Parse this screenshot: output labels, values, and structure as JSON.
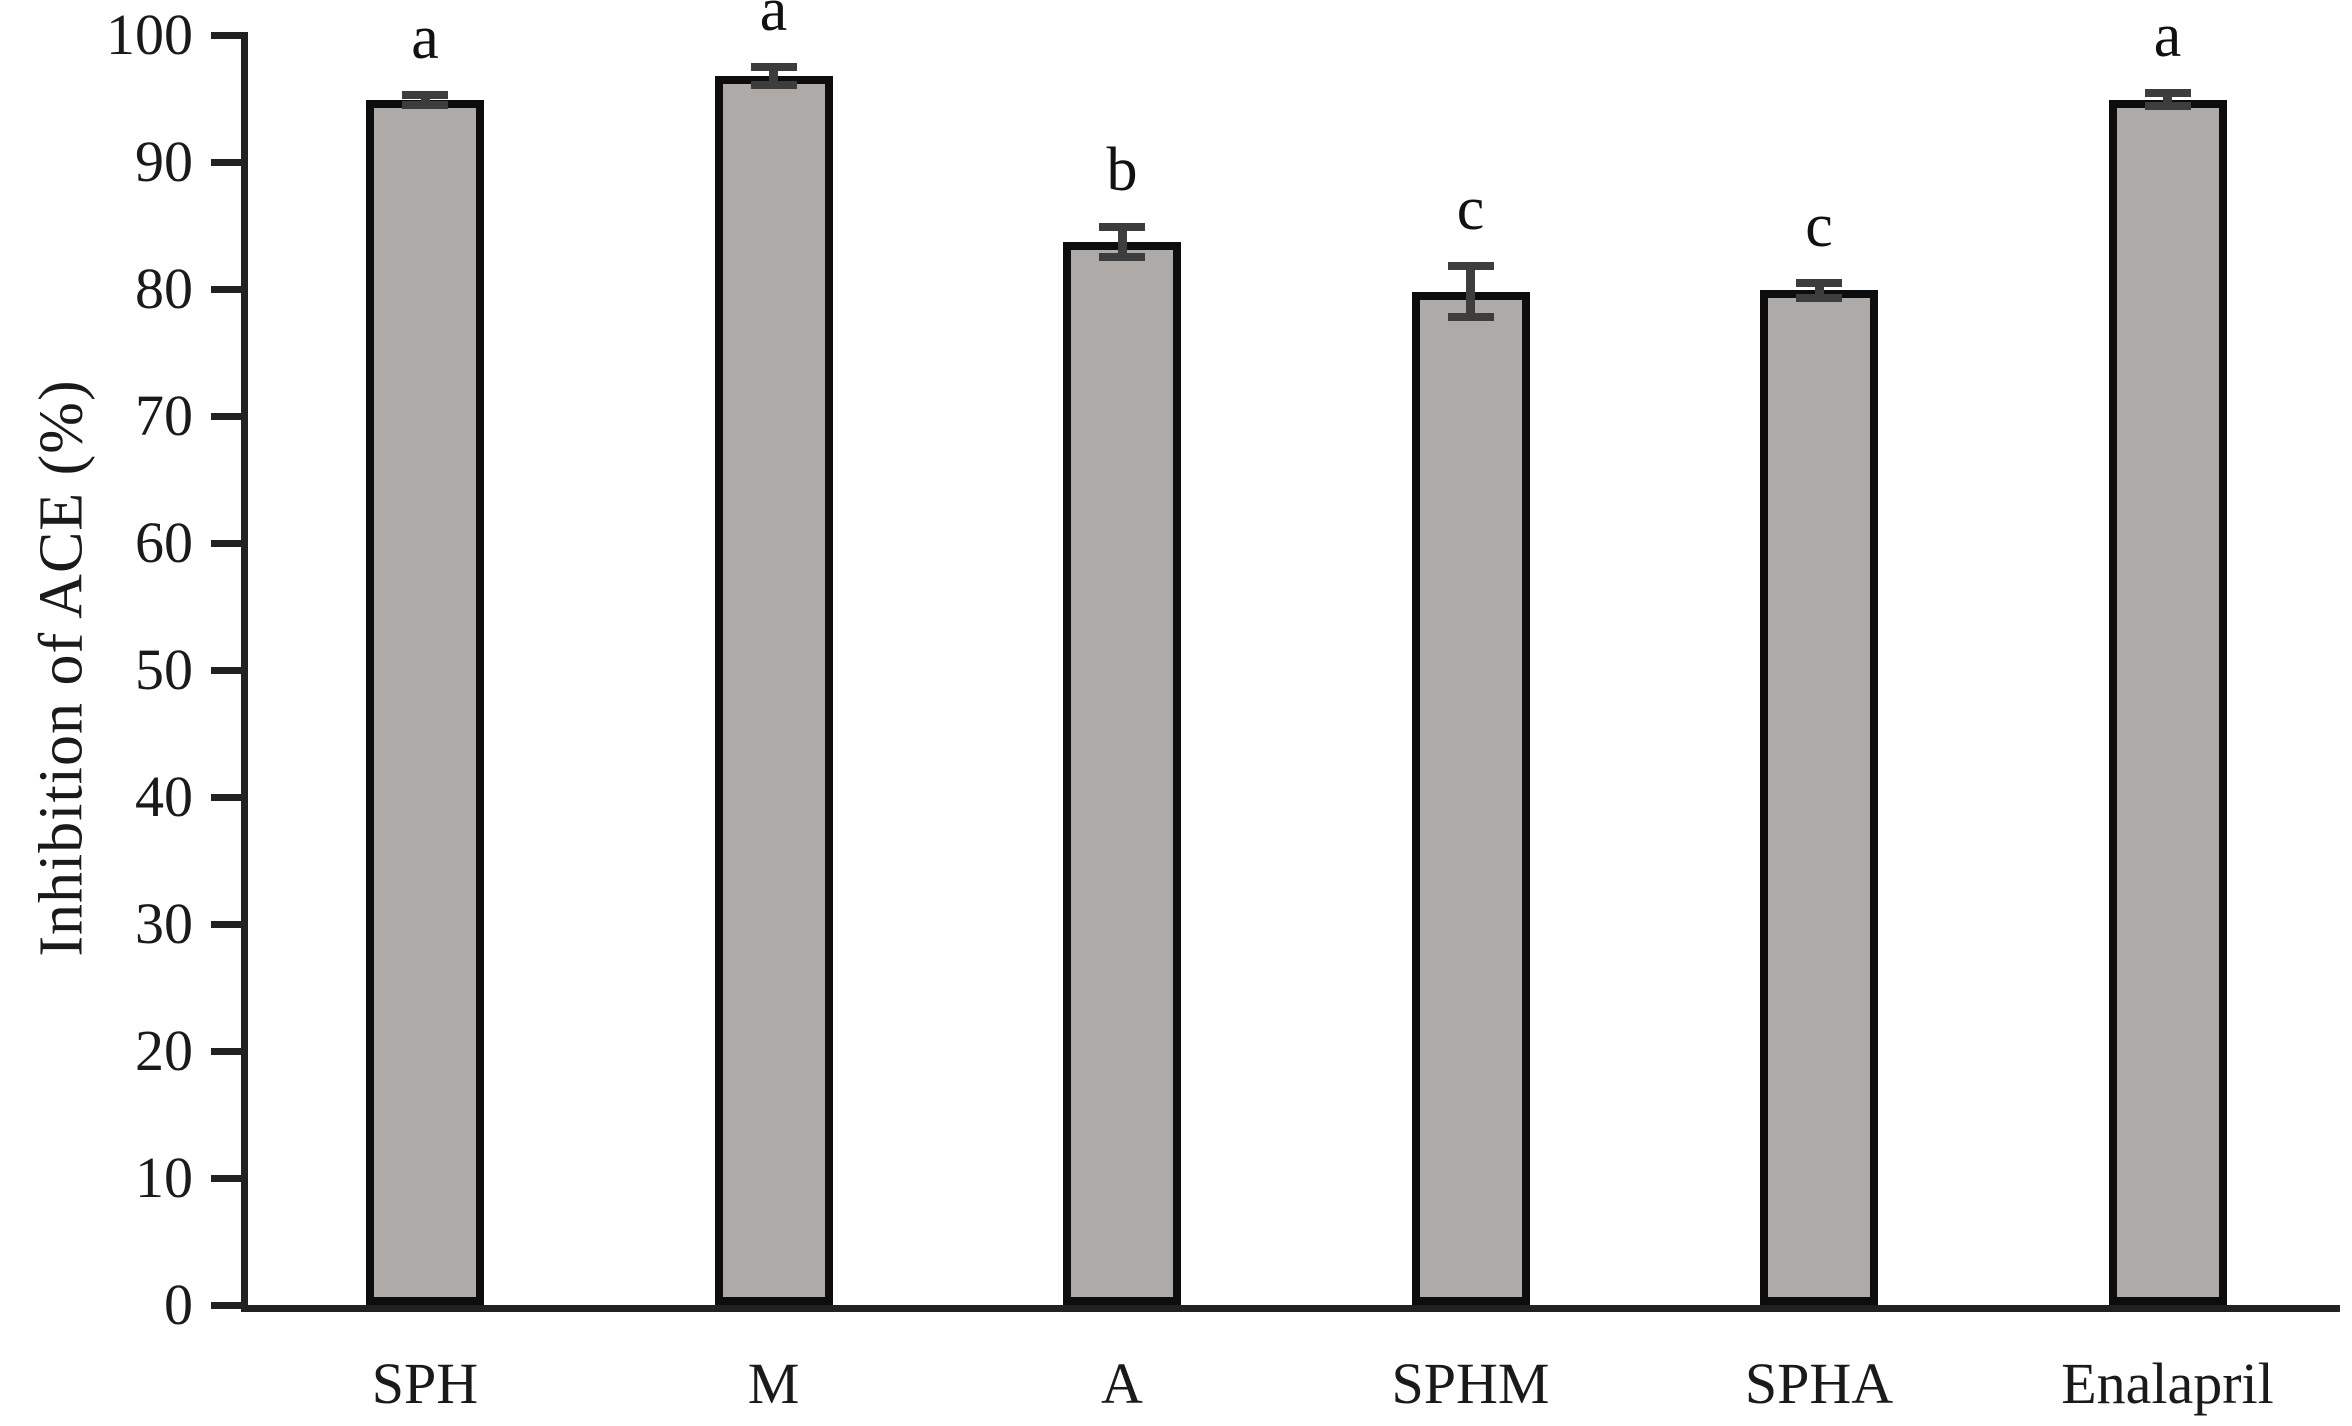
{
  "chart_data": {
    "type": "bar",
    "title": "",
    "xlabel": "",
    "ylabel": "Inhibition of ACE (%)",
    "categories": [
      "SPH",
      "M",
      "A",
      "SPHM",
      "SPHA",
      "Enalapril"
    ],
    "values": [
      94.9,
      96.8,
      83.7,
      79.8,
      79.9,
      94.9
    ],
    "error_bars": [
      0.4,
      0.7,
      1.2,
      2.0,
      0.6,
      0.5
    ],
    "significance_letters": [
      "a",
      "a",
      "b",
      "c",
      "c",
      "a"
    ],
    "ylim": [
      0,
      100
    ],
    "ytick_step": 10,
    "ytick_labels": [
      "0",
      "10",
      "20",
      "30",
      "40",
      "50",
      "60",
      "70",
      "80",
      "90",
      "100"
    ],
    "grid": false,
    "legend": null,
    "colors": {
      "bar_fill": "#aeaaa7",
      "bar_border": "#0d0d0d",
      "error_bar": "#3d3d3d",
      "axis": "#212121",
      "text": "#1a1a1a",
      "background": "#ffffff"
    }
  }
}
